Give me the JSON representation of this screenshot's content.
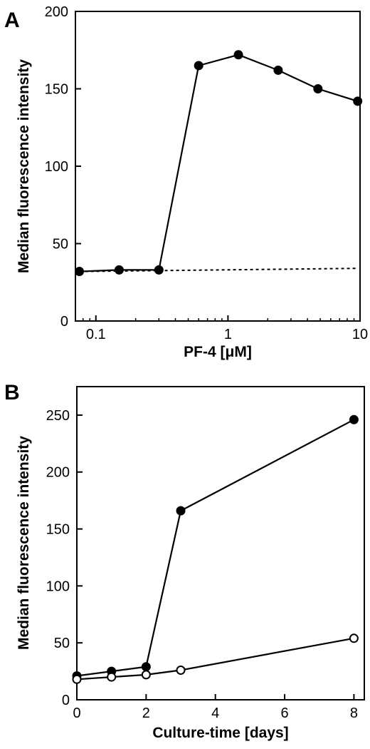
{
  "chart_data": [
    {
      "type": "line",
      "panel_label": "A",
      "xlabel": "PF-4 [μM]",
      "ylabel": "Median fluorescence intensity",
      "x_scale": "log",
      "xlim": [
        0.07,
        10
      ],
      "ylim": [
        0,
        200
      ],
      "x_ticks": [
        0.1,
        1,
        10
      ],
      "x_tick_labels": [
        "0.1",
        "1",
        "10"
      ],
      "y_ticks": [
        0,
        50,
        100,
        150,
        200
      ],
      "y_tick_labels": [
        "0",
        "50",
        "100",
        "150",
        "200"
      ],
      "grid": false,
      "series": [
        {
          "marker": "filled",
          "line_style": "solid",
          "x": [
            0.075,
            0.15,
            0.3,
            0.6,
            1.2,
            2.4,
            4.8,
            9.6
          ],
          "y": [
            32,
            33,
            33,
            165,
            172,
            162,
            150,
            142
          ]
        },
        {
          "marker": "none",
          "line_style": "dotted",
          "x": [
            0.075,
            9.6
          ],
          "y": [
            32,
            34
          ]
        }
      ]
    },
    {
      "type": "line",
      "panel_label": "B",
      "xlabel": "Culture-time [days]",
      "ylabel": "Median fluorescence intensity",
      "x_scale": "linear",
      "xlim": [
        0,
        8.3
      ],
      "ylim": [
        0,
        275
      ],
      "x_ticks": [
        0,
        2,
        4,
        6,
        8
      ],
      "x_tick_labels": [
        "0",
        "2",
        "4",
        "6",
        "8"
      ],
      "y_ticks": [
        0,
        50,
        100,
        150,
        200,
        250
      ],
      "y_tick_labels": [
        "0",
        "50",
        "100",
        "150",
        "200",
        "250"
      ],
      "grid": false,
      "series": [
        {
          "marker": "filled",
          "line_style": "solid",
          "x": [
            0,
            1,
            2,
            3,
            8
          ],
          "y": [
            21,
            25,
            29,
            166,
            246
          ]
        },
        {
          "marker": "open",
          "line_style": "solid",
          "x": [
            0,
            1,
            2,
            3,
            8
          ],
          "y": [
            18,
            20,
            22,
            26,
            54
          ]
        }
      ]
    }
  ]
}
